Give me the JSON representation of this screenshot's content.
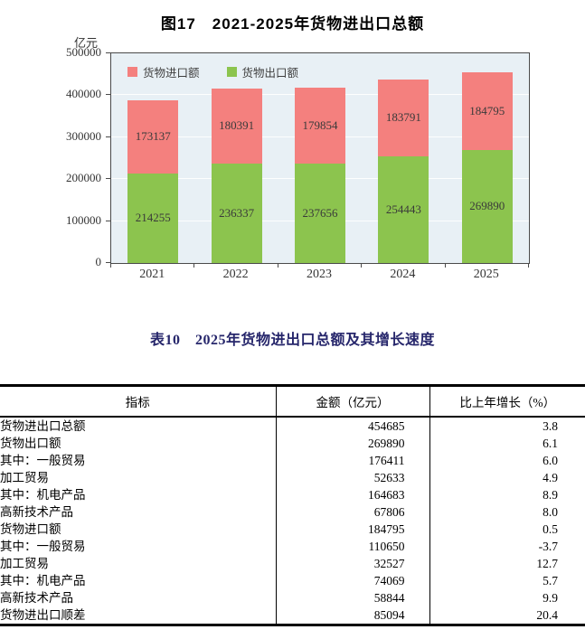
{
  "chart": {
    "title": "图17　2021-2025年货物进出口总额",
    "unit_label": "亿元",
    "legend": [
      {
        "label": "货物进口额",
        "color": "#f4807e"
      },
      {
        "label": "货物出口额",
        "color": "#8cc44e"
      }
    ]
  },
  "chart_data": {
    "type": "bar",
    "stacked": true,
    "title": "图17　2021-2025年货物进出口总额",
    "ylabel": "亿元",
    "xlabel": "",
    "categories": [
      "2021",
      "2022",
      "2023",
      "2024",
      "2025"
    ],
    "series": [
      {
        "name": "货物出口额",
        "color": "#8cc44e",
        "values": [
          214255,
          236337,
          237656,
          254443,
          269890
        ]
      },
      {
        "name": "货物进口额",
        "color": "#f4807e",
        "values": [
          173137,
          180391,
          179854,
          183791,
          184795
        ]
      }
    ],
    "ylim": [
      0,
      500000
    ],
    "yticks": [
      0,
      100000,
      200000,
      300000,
      400000,
      500000
    ],
    "grid": true,
    "plot_bg": "#e8f0f5",
    "legend_position": "top-left-inside",
    "bar_labels": true
  },
  "table": {
    "title": "表10　2025年货物进出口总额及其增长速度",
    "title_color": "#26266b",
    "columns": [
      "指标",
      "金额（亿元）",
      "比上年增长（%）"
    ],
    "rows": [
      {
        "indicator": "货物进出口总额",
        "indent": 0,
        "amount": "454685",
        "growth": "3.8"
      },
      {
        "indicator": "货物出口额",
        "indent": 1,
        "amount": "269890",
        "growth": "6.1"
      },
      {
        "indicator": "其中：一般贸易",
        "indent": 2,
        "amount": "176411",
        "growth": "6.0"
      },
      {
        "indicator": "加工贸易",
        "indent": 3,
        "amount": "52633",
        "growth": "4.9"
      },
      {
        "indicator": "其中：机电产品",
        "indent": 2,
        "amount": "164683",
        "growth": "8.9"
      },
      {
        "indicator": "高新技术产品",
        "indent": 3,
        "amount": "67806",
        "growth": "8.0"
      },
      {
        "indicator": "货物进口额",
        "indent": 1,
        "amount": "184795",
        "growth": "0.5"
      },
      {
        "indicator": "其中：一般贸易",
        "indent": 2,
        "amount": "110650",
        "growth": "-3.7"
      },
      {
        "indicator": "加工贸易",
        "indent": 3,
        "amount": "32527",
        "growth": "12.7"
      },
      {
        "indicator": "其中：机电产品",
        "indent": 2,
        "amount": "74069",
        "growth": "5.7"
      },
      {
        "indicator": "高新技术产品",
        "indent": 3,
        "amount": "58844",
        "growth": "9.9"
      },
      {
        "indicator": "货物进出口顺差",
        "indent": 0,
        "amount": "85094",
        "growth": "20.4"
      }
    ]
  }
}
